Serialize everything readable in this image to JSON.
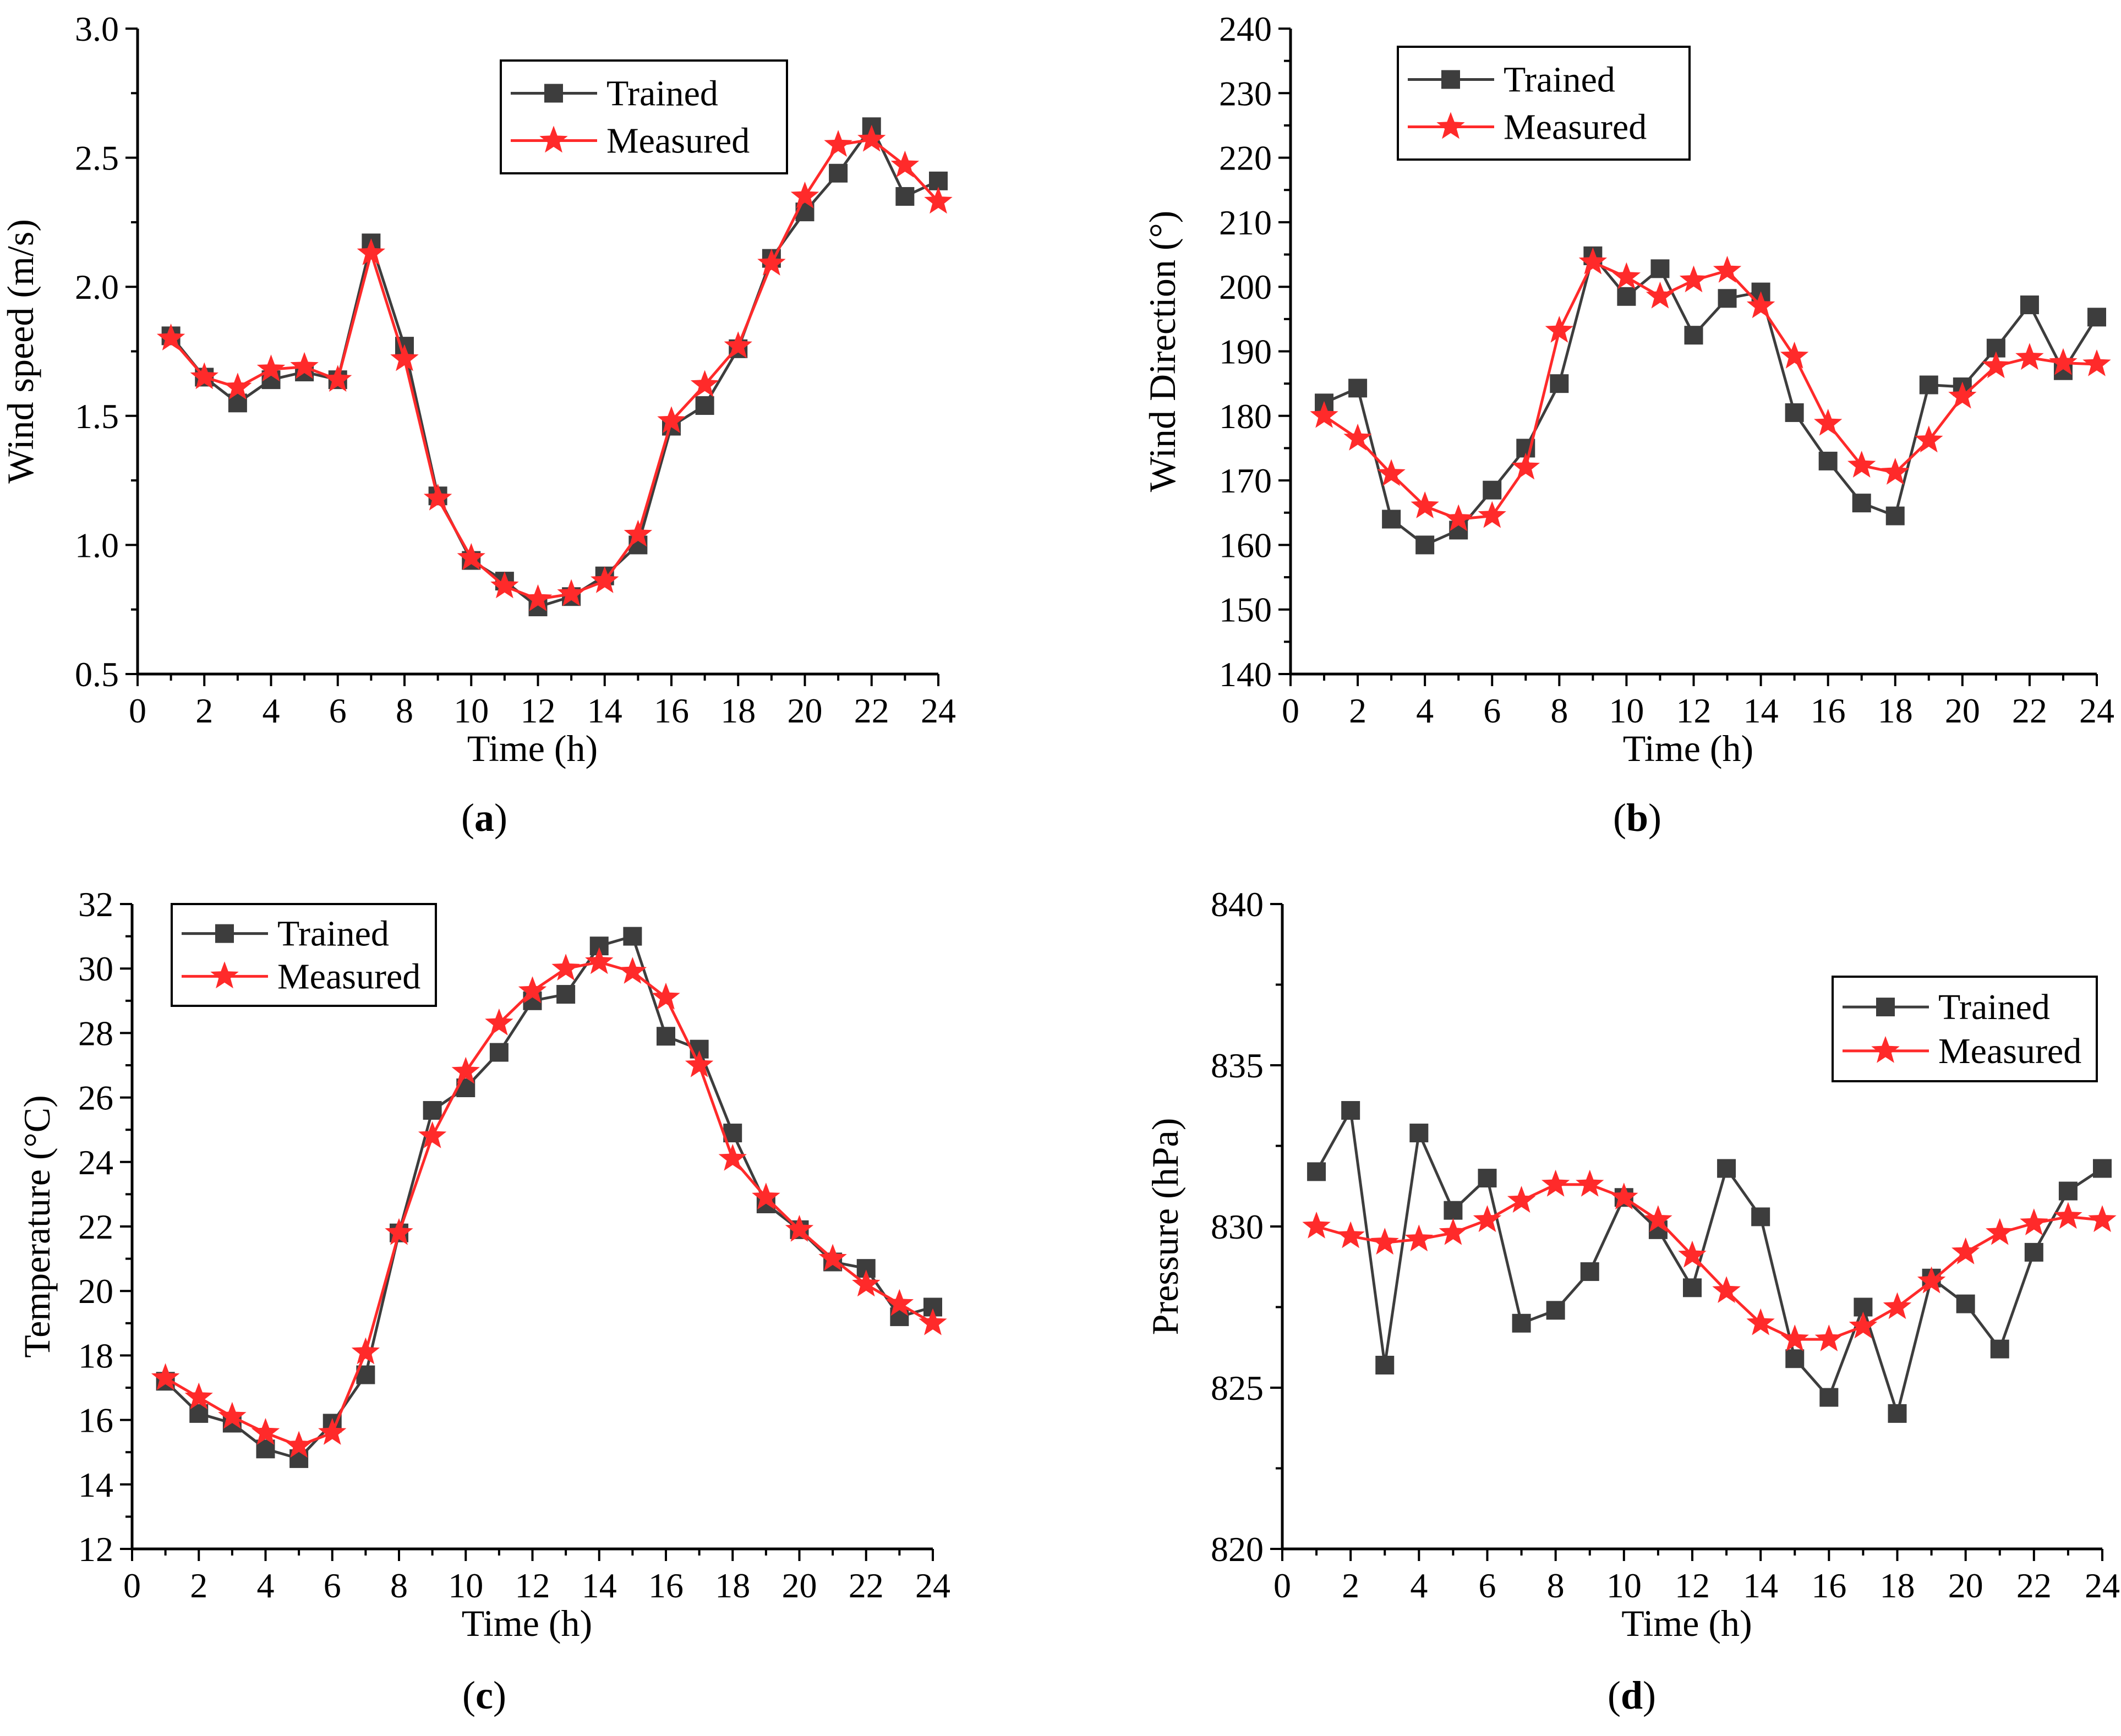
{
  "figure": {
    "panels_caption_template": "({letter})"
  },
  "colors": {
    "trained": "#3d3d3d",
    "measured": "#ff2a2a"
  },
  "chart_data": [
    {
      "type": "line",
      "caption": "a",
      "xlabel": "Time (h)",
      "ylabel": "Wind speed (m/s)",
      "xlim": [
        0,
        24
      ],
      "ylim": [
        0.5,
        3.0
      ],
      "xticks": [
        0,
        2,
        4,
        6,
        8,
        10,
        12,
        14,
        16,
        18,
        20,
        22,
        24
      ],
      "yticks": [
        "0.5",
        "1.0",
        "1.5",
        "2.0",
        "2.5",
        "3.0"
      ],
      "legend_position": "top-center",
      "x": [
        1,
        2,
        3,
        4,
        5,
        6,
        7,
        8,
        9,
        10,
        11,
        12,
        13,
        14,
        15,
        16,
        17,
        18,
        19,
        20,
        21,
        22,
        23,
        24
      ],
      "series": [
        {
          "name": "Trained",
          "marker": "square",
          "values": [
            1.81,
            1.65,
            1.55,
            1.64,
            1.67,
            1.64,
            2.17,
            1.77,
            1.19,
            0.94,
            0.86,
            0.76,
            0.8,
            0.88,
            1.0,
            1.46,
            1.54,
            1.76,
            2.11,
            2.29,
            2.44,
            2.62,
            2.35,
            2.41
          ]
        },
        {
          "name": "Measured",
          "marker": "star",
          "values": [
            1.8,
            1.65,
            1.61,
            1.68,
            1.69,
            1.64,
            2.13,
            1.72,
            1.18,
            0.95,
            0.84,
            0.79,
            0.81,
            0.86,
            1.04,
            1.48,
            1.62,
            1.77,
            2.09,
            2.35,
            2.55,
            2.57,
            2.47,
            2.33
          ]
        }
      ]
    },
    {
      "type": "line",
      "caption": "b",
      "xlabel": "Time (h)",
      "ylabel": "Wind Direction (°)",
      "xlim": [
        0,
        24
      ],
      "ylim": [
        140,
        240
      ],
      "xticks": [
        0,
        2,
        4,
        6,
        8,
        10,
        12,
        14,
        16,
        18,
        20,
        22,
        24
      ],
      "yticks": [
        "140",
        "150",
        "160",
        "170",
        "180",
        "190",
        "200",
        "210",
        "220",
        "230",
        "240"
      ],
      "legend_position": "top-left",
      "x": [
        1,
        2,
        3,
        4,
        5,
        6,
        7,
        8,
        9,
        10,
        11,
        12,
        13,
        14,
        15,
        16,
        17,
        18,
        19,
        20,
        21,
        22,
        23,
        24
      ],
      "series": [
        {
          "name": "Trained",
          "marker": "square",
          "values": [
            182.0,
            184.3,
            164.0,
            160.0,
            162.3,
            168.5,
            175.0,
            185.0,
            204.8,
            198.5,
            202.8,
            192.5,
            198.2,
            199.2,
            180.5,
            173.0,
            166.5,
            164.5,
            184.8,
            184.5,
            190.5,
            197.2,
            187.0,
            195.3
          ]
        },
        {
          "name": "Measured",
          "marker": "star",
          "values": [
            180.0,
            176.5,
            171.0,
            166.0,
            164.0,
            164.5,
            172.0,
            193.2,
            203.8,
            201.5,
            198.5,
            201.0,
            202.5,
            197.0,
            189.2,
            178.8,
            172.3,
            171.2,
            176.2,
            183.0,
            187.7,
            189.0,
            188.2,
            188.0
          ]
        }
      ]
    },
    {
      "type": "line",
      "caption": "c",
      "xlabel": "Time (h)",
      "ylabel": "Temperature (°C)",
      "xlim": [
        0,
        24
      ],
      "ylim": [
        12,
        32
      ],
      "xticks": [
        0,
        2,
        4,
        6,
        8,
        10,
        12,
        14,
        16,
        18,
        20,
        22,
        24
      ],
      "yticks": [
        "12",
        "14",
        "16",
        "18",
        "20",
        "22",
        "24",
        "26",
        "28",
        "30",
        "32"
      ],
      "legend_position": "top-left",
      "x": [
        1,
        2,
        3,
        4,
        5,
        6,
        7,
        8,
        9,
        10,
        11,
        12,
        13,
        14,
        15,
        16,
        17,
        18,
        19,
        20,
        21,
        22,
        23,
        24
      ],
      "series": [
        {
          "name": "Trained",
          "marker": "square",
          "values": [
            17.2,
            16.2,
            15.9,
            15.1,
            14.8,
            15.9,
            17.4,
            21.8,
            25.6,
            26.3,
            27.4,
            29.0,
            29.2,
            30.7,
            31.0,
            27.9,
            27.5,
            24.9,
            22.7,
            21.9,
            20.9,
            20.7,
            19.2,
            19.5
          ]
        },
        {
          "name": "Measured",
          "marker": "star",
          "values": [
            17.3,
            16.7,
            16.1,
            15.6,
            15.2,
            15.6,
            18.1,
            21.8,
            24.8,
            26.8,
            28.3,
            29.3,
            30.0,
            30.2,
            29.9,
            29.1,
            27.0,
            24.1,
            22.9,
            21.9,
            21.0,
            20.2,
            19.6,
            19.0
          ]
        }
      ]
    },
    {
      "type": "line",
      "caption": "d",
      "xlabel": "Time (h)",
      "ylabel": "Pressure (hPa)",
      "xlim": [
        0,
        24
      ],
      "ylim": [
        820,
        840
      ],
      "xticks": [
        0,
        2,
        4,
        6,
        8,
        10,
        12,
        14,
        16,
        18,
        20,
        22,
        24
      ],
      "yticks": [
        "820",
        "825",
        "830",
        "835",
        "840"
      ],
      "legend_position": "top-right",
      "x": [
        1,
        2,
        3,
        4,
        5,
        6,
        7,
        8,
        9,
        10,
        11,
        12,
        13,
        14,
        15,
        16,
        17,
        18,
        19,
        20,
        21,
        22,
        23,
        24
      ],
      "series": [
        {
          "name": "Trained",
          "marker": "square",
          "values": [
            831.7,
            833.6,
            825.7,
            832.9,
            830.5,
            831.5,
            827.0,
            827.4,
            828.6,
            830.9,
            829.9,
            828.1,
            831.8,
            830.3,
            825.9,
            824.7,
            827.5,
            824.2,
            828.4,
            827.6,
            826.2,
            829.2,
            831.1,
            831.8
          ]
        },
        {
          "name": "Measured",
          "marker": "star",
          "values": [
            830.0,
            829.7,
            829.5,
            829.6,
            829.8,
            830.2,
            830.8,
            831.3,
            831.3,
            830.9,
            830.2,
            829.1,
            828.0,
            827.0,
            826.5,
            826.5,
            826.9,
            827.5,
            828.3,
            829.2,
            829.8,
            830.1,
            830.3,
            830.2
          ]
        }
      ]
    }
  ]
}
